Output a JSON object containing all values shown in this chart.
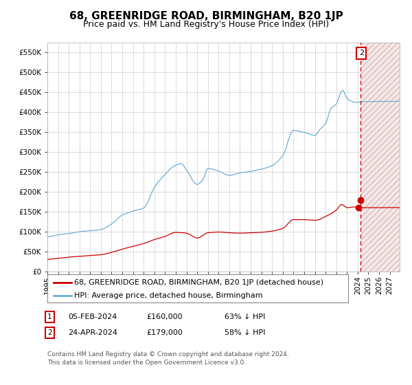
{
  "title": "68, GREENRIDGE ROAD, BIRMINGHAM, B20 1JP",
  "subtitle": "Price paid vs. HM Land Registry's House Price Index (HPI)",
  "hpi_label": "HPI: Average price, detached house, Birmingham",
  "property_label": "68, GREENRIDGE ROAD, BIRMINGHAM, B20 1JP (detached house)",
  "ylim": [
    0,
    575000
  ],
  "yticks": [
    0,
    50000,
    100000,
    150000,
    200000,
    250000,
    300000,
    350000,
    400000,
    450000,
    500000,
    550000
  ],
  "ytick_labels": [
    "£0",
    "£50K",
    "£100K",
    "£150K",
    "£200K",
    "£250K",
    "£300K",
    "£350K",
    "£400K",
    "£450K",
    "£500K",
    "£550K"
  ],
  "hpi_color": "#6baed6",
  "property_color": "#cc0000",
  "background_color": "#ffffff",
  "grid_color": "#cccccc",
  "annotation_box_color": "#cc0000",
  "transaction1_date": "05-FEB-2024",
  "transaction1_price": 160000,
  "transaction1_hpi": "63% ↓ HPI",
  "transaction2_date": "24-APR-2024",
  "transaction2_price": 179000,
  "transaction2_hpi": "58% ↓ HPI",
  "footer": "Contains HM Land Registry data © Crown copyright and database right 2024.\nThis data is licensed under the Open Government Licence v3.0.",
  "title_fontsize": 11,
  "subtitle_fontsize": 9,
  "tick_fontsize": 7.5,
  "legend_fontsize": 8,
  "footer_fontsize": 6.5,
  "hpi_anchors_year": [
    1995,
    1996,
    1997,
    1998,
    1999,
    2000,
    2001,
    2002,
    2003,
    2004,
    2005,
    2006,
    2007,
    2007.5,
    2008,
    2009,
    2009.5,
    2010,
    2011,
    2012,
    2013,
    2014,
    2015,
    2016,
    2017,
    2018,
    2019,
    2019.5,
    2020,
    2020.5,
    2021,
    2021.5,
    2022,
    2022.6,
    2023,
    2023.5,
    2024,
    2024.3,
    2025,
    2026,
    2027
  ],
  "hpi_anchors_val": [
    86000,
    92000,
    96000,
    101000,
    104000,
    107000,
    120000,
    142000,
    152000,
    160000,
    212000,
    245000,
    268000,
    272000,
    255000,
    218000,
    228000,
    258000,
    252000,
    242000,
    248000,
    252000,
    258000,
    268000,
    293000,
    357000,
    352000,
    348000,
    344000,
    360000,
    374000,
    412000,
    424000,
    458000,
    438000,
    430000,
    428000,
    430000,
    430000,
    430000,
    430000
  ],
  "prop_anchors_year": [
    1995,
    1996,
    1997,
    1998,
    1999,
    2000,
    2001,
    2002,
    2003,
    2004,
    2005,
    2006,
    2007,
    2008,
    2009,
    2010,
    2011,
    2012,
    2013,
    2014,
    2015,
    2016,
    2017,
    2018,
    2019,
    2020,
    2021,
    2022,
    2022.5,
    2023,
    2023.8,
    2024,
    2024.3,
    2025,
    2026,
    2027
  ],
  "prop_anchors_val": [
    30000,
    33000,
    36000,
    38000,
    40000,
    42000,
    48000,
    56000,
    63000,
    70000,
    80000,
    88000,
    98000,
    96000,
    84000,
    97000,
    99000,
    97000,
    96000,
    97000,
    98000,
    101000,
    108000,
    130000,
    130000,
    128000,
    138000,
    154000,
    168000,
    160000,
    162000,
    160000,
    160000,
    160000,
    160000,
    160000
  ],
  "t1_x": 2024.08,
  "t1_y": 160000,
  "t2_x": 2024.29,
  "t2_y": 179000,
  "future_x": 2024.29,
  "xlim_start": 1995,
  "xlim_end": 2027.92
}
